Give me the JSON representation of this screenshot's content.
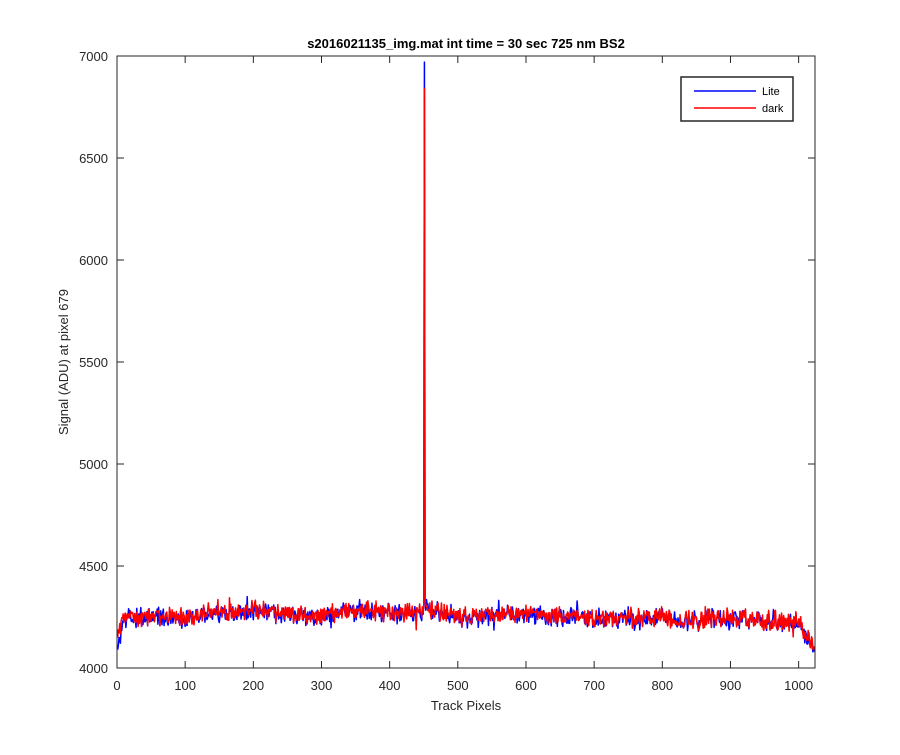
{
  "chart_data": {
    "type": "line",
    "title": "s2016021135_img.mat int time = 30 sec  725 nm BS2",
    "xlabel": "Track Pixels",
    "ylabel": "Signal (ADU) at pixel 679",
    "xlim": [
      0,
      1024
    ],
    "ylim": [
      4000,
      7000
    ],
    "xticks": [
      0,
      100,
      200,
      300,
      400,
      500,
      600,
      700,
      800,
      900,
      1000
    ],
    "yticks": [
      4000,
      4500,
      5000,
      5500,
      6000,
      6500,
      7000
    ],
    "grid": false,
    "legend_position": "top-right",
    "baseline_mean": 4245,
    "noise_amplitude": 35,
    "spike": {
      "x": 451,
      "lite": 6970,
      "dark": 6840
    },
    "series": [
      {
        "name": "Lite",
        "color": "#0000ff",
        "x": [
          1,
          10,
          50,
          100,
          150,
          200,
          250,
          300,
          350,
          400,
          450,
          451,
          452,
          500,
          550,
          600,
          650,
          700,
          750,
          800,
          850,
          900,
          950,
          1000,
          1024
        ],
        "y": [
          4090,
          4240,
          4250,
          4240,
          4270,
          4280,
          4265,
          4250,
          4280,
          4270,
          4270,
          6970,
          4300,
          4245,
          4250,
          4260,
          4250,
          4240,
          4245,
          4240,
          4230,
          4240,
          4230,
          4220,
          4080
        ]
      },
      {
        "name": "dark",
        "color": "#ff0000",
        "x": [
          1,
          10,
          50,
          100,
          150,
          200,
          250,
          300,
          350,
          400,
          450,
          451,
          452,
          500,
          550,
          600,
          650,
          700,
          750,
          800,
          850,
          900,
          950,
          1000,
          1024
        ],
        "y": [
          4150,
          4250,
          4255,
          4245,
          4275,
          4285,
          4270,
          4255,
          4285,
          4275,
          4275,
          6840,
          4300,
          4250,
          4255,
          4265,
          4255,
          4245,
          4250,
          4245,
          4235,
          4245,
          4235,
          4225,
          4100
        ]
      }
    ]
  }
}
